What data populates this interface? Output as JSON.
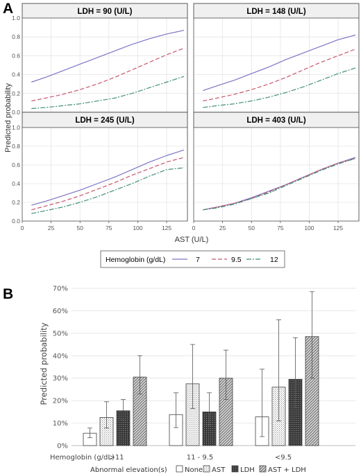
{
  "chart_data": [
    {
      "panel": "A",
      "type": "line",
      "xlabel": "AST (U/L)",
      "ylabel": "Predicted probability",
      "xlim": [
        0,
        143
      ],
      "ylim": [
        0,
        1.0
      ],
      "x_ticks": [
        0,
        25,
        50,
        75,
        100,
        125
      ],
      "y_ticks": [
        0.0,
        0.2,
        0.4,
        0.6,
        0.8,
        1.0
      ],
      "grid": true,
      "legend": {
        "title": "Hemoglobin (g/dL)",
        "placement": "bottom",
        "entries": [
          "7",
          "9.5",
          "12"
        ]
      },
      "x": [
        8,
        20,
        35,
        50,
        65,
        80,
        95,
        110,
        125,
        140
      ],
      "facets": [
        {
          "title": "LDH = 90 (U/L)",
          "series": [
            {
              "name": "7",
              "values": [
                0.32,
                0.37,
                0.44,
                0.51,
                0.58,
                0.65,
                0.72,
                0.78,
                0.83,
                0.87
              ]
            },
            {
              "name": "9.5",
              "values": [
                0.12,
                0.15,
                0.19,
                0.24,
                0.3,
                0.37,
                0.45,
                0.53,
                0.61,
                0.68
              ]
            },
            {
              "name": "12",
              "values": [
                0.04,
                0.05,
                0.07,
                0.09,
                0.12,
                0.15,
                0.2,
                0.26,
                0.32,
                0.38
              ]
            }
          ]
        },
        {
          "title": "LDH = 148 (U/L)",
          "series": [
            {
              "name": "7",
              "values": [
                0.23,
                0.28,
                0.34,
                0.41,
                0.48,
                0.56,
                0.63,
                0.7,
                0.77,
                0.82
              ]
            },
            {
              "name": "9.5",
              "values": [
                0.12,
                0.15,
                0.19,
                0.24,
                0.3,
                0.37,
                0.45,
                0.53,
                0.6,
                0.67
              ]
            },
            {
              "name": "12",
              "values": [
                0.05,
                0.07,
                0.09,
                0.12,
                0.16,
                0.21,
                0.27,
                0.34,
                0.41,
                0.47
              ]
            }
          ]
        },
        {
          "title": "LDH = 245 (U/L)",
          "series": [
            {
              "name": "7",
              "values": [
                0.17,
                0.21,
                0.27,
                0.33,
                0.4,
                0.47,
                0.55,
                0.63,
                0.7,
                0.76
              ]
            },
            {
              "name": "9.5",
              "values": [
                0.12,
                0.16,
                0.21,
                0.27,
                0.34,
                0.41,
                0.49,
                0.56,
                0.63,
                0.68
              ]
            },
            {
              "name": "12",
              "values": [
                0.08,
                0.11,
                0.15,
                0.2,
                0.26,
                0.33,
                0.4,
                0.48,
                0.55,
                0.57
              ]
            }
          ]
        },
        {
          "title": "LDH = 403 (U/L)",
          "series": [
            {
              "name": "7",
              "values": [
                0.12,
                0.15,
                0.19,
                0.25,
                0.32,
                0.39,
                0.47,
                0.55,
                0.62,
                0.68
              ]
            },
            {
              "name": "9.5",
              "values": [
                0.12,
                0.15,
                0.19,
                0.24,
                0.31,
                0.39,
                0.47,
                0.55,
                0.62,
                0.67
              ]
            },
            {
              "name": "12",
              "values": [
                0.12,
                0.14,
                0.18,
                0.24,
                0.3,
                0.38,
                0.46,
                0.54,
                0.61,
                0.67
              ]
            }
          ]
        }
      ]
    },
    {
      "panel": "B",
      "type": "bar",
      "ylabel": "Predicted probability",
      "ylim": [
        0,
        70
      ],
      "y_ticks": [
        "0%",
        "10%",
        "20%",
        "30%",
        "40%",
        "50%",
        "60%",
        "70%"
      ],
      "y_tick_values": [
        0,
        10,
        20,
        30,
        40,
        50,
        60,
        70
      ],
      "grid": true,
      "category_axis_label": "Hemoglobin (g/dL)",
      "categories": [
        ">11",
        "11 - 9.5",
        "<9.5"
      ],
      "legend": {
        "title": "Abnormal elevation(s)",
        "placement": "bottom",
        "entries": [
          "None",
          "AST",
          "LDH",
          "AST + LDH"
        ]
      },
      "series": [
        {
          "name": "None",
          "values": [
            5.5,
            13.8,
            12.8
          ],
          "err_low": [
            3.5,
            8.0,
            4.0
          ],
          "err_high": [
            7.8,
            23.5,
            34.0
          ]
        },
        {
          "name": "AST",
          "values": [
            12.5,
            27.5,
            26.0
          ],
          "err_low": [
            7.8,
            16.5,
            11.0
          ],
          "err_high": [
            19.5,
            45.0,
            56.0
          ]
        },
        {
          "name": "LDH",
          "values": [
            15.5,
            15.0,
            29.5
          ],
          "err_low": [
            11.5,
            9.0,
            17.0
          ],
          "err_high": [
            20.5,
            23.5,
            48.0
          ]
        },
        {
          "name": "AST + LDH",
          "values": [
            30.5,
            30.0,
            48.5
          ],
          "err_low": [
            23.0,
            20.5,
            30.0
          ],
          "err_high": [
            40.0,
            42.5,
            68.5
          ]
        }
      ]
    }
  ],
  "colors": {
    "hb7": "#7b74c4",
    "hb95": "#c8566a",
    "hb12": "#3f8f77",
    "grid": "#e4e4e4",
    "strip_bg": "#f0f0f0",
    "bar_ldh": "#3a3a3a",
    "bar_edge": "#404040"
  }
}
